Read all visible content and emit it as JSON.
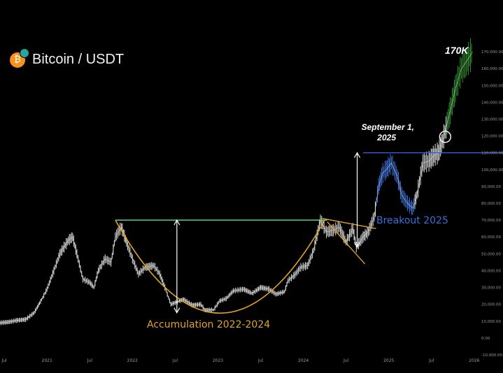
{
  "header": {
    "title": "Bitcoin / USDT",
    "icon": "bitcoin-icon"
  },
  "annotations": {
    "peak_label": "170K",
    "date_label_line1": "September 1,",
    "date_label_line2": "2025",
    "breakout_label": "Breakout 2025",
    "accumulation_label": "Accumulation 2022-2024"
  },
  "colors": {
    "background": "#000000",
    "candle": "#d9d9d9",
    "candle_blue": "#3b6fd1",
    "candle_green": "#2e8b2e",
    "cup": "#e0a528",
    "neckline": "#5fd08a",
    "breakout_line": "#3a5bd9",
    "flag": "#e0a528",
    "arrow": "#ffffff",
    "breakout_text": "#3a6fd8",
    "accum_text": "#e0a528"
  },
  "chart_data": {
    "type": "line",
    "title": "Bitcoin / USDT",
    "x_ticks": [
      "Jul",
      "2021",
      "Jul",
      "2022",
      "Jul",
      "2023",
      "Jul",
      "2024",
      "Jul",
      "2025",
      "Jul",
      "2026"
    ],
    "y_ticks": [
      "170,000.00",
      "160,000.00",
      "150,000.00",
      "140,000.00",
      "130,000.00",
      "120,000.00",
      "110,000.00",
      "100,000.00",
      "90,000.00",
      "80,000.00",
      "70,000.00",
      "60,000.00",
      "50,000.00",
      "40,000.00",
      "30,000.00",
      "20,000.00",
      "10,000.00",
      "0.00",
      "-10,000.00"
    ],
    "ylim": [
      -10000,
      175000
    ],
    "x_range": [
      2020.45,
      2026.05
    ],
    "series": [
      {
        "values": [
          [
            2020.45,
            9000
          ],
          [
            2020.55,
            9500
          ],
          [
            2020.65,
            10500
          ],
          [
            2020.75,
            11000
          ],
          [
            2020.85,
            15000
          ],
          [
            2020.95,
            24000
          ],
          [
            2021.0,
            29000
          ],
          [
            2021.08,
            40000
          ],
          [
            2021.15,
            50000
          ],
          [
            2021.25,
            58000
          ],
          [
            2021.3,
            60000
          ],
          [
            2021.35,
            50000
          ],
          [
            2021.42,
            35000
          ],
          [
            2021.5,
            33000
          ],
          [
            2021.55,
            30000
          ],
          [
            2021.6,
            40000
          ],
          [
            2021.68,
            47000
          ],
          [
            2021.75,
            45000
          ],
          [
            2021.8,
            60000
          ],
          [
            2021.87,
            66000
          ],
          [
            2021.93,
            57000
          ],
          [
            2022.0,
            47000
          ],
          [
            2022.07,
            38000
          ],
          [
            2022.15,
            42000
          ],
          [
            2022.25,
            43000
          ],
          [
            2022.32,
            38000
          ],
          [
            2022.38,
            30000
          ],
          [
            2022.45,
            20000
          ],
          [
            2022.55,
            22000
          ],
          [
            2022.6,
            23000
          ],
          [
            2022.7,
            19500
          ],
          [
            2022.8,
            20000
          ],
          [
            2022.85,
            16500
          ],
          [
            2022.95,
            16700
          ],
          [
            2023.02,
            22000
          ],
          [
            2023.1,
            23500
          ],
          [
            2023.18,
            28000
          ],
          [
            2023.3,
            29000
          ],
          [
            2023.4,
            26500
          ],
          [
            2023.5,
            30000
          ],
          [
            2023.6,
            29000
          ],
          [
            2023.68,
            26000
          ],
          [
            2023.78,
            27500
          ],
          [
            2023.82,
            34000
          ],
          [
            2023.9,
            37500
          ],
          [
            2023.97,
            42000
          ],
          [
            2024.05,
            43000
          ],
          [
            2024.12,
            52000
          ],
          [
            2024.2,
            70000
          ],
          [
            2024.27,
            63000
          ],
          [
            2024.35,
            64000
          ],
          [
            2024.42,
            66000
          ],
          [
            2024.5,
            57000
          ],
          [
            2024.58,
            65000
          ],
          [
            2024.62,
            54000
          ],
          [
            2024.7,
            60000
          ],
          [
            2024.76,
            63000
          ],
          [
            2024.83,
            72000
          ],
          [
            2024.88,
            90000
          ],
          [
            2024.93,
            98000
          ],
          [
            2024.97,
            100000
          ],
          [
            2025.03,
            104000
          ],
          [
            2025.1,
            96000
          ],
          [
            2025.15,
            85000
          ],
          [
            2025.22,
            80000
          ],
          [
            2025.28,
            77000
          ],
          [
            2025.33,
            85000
          ],
          [
            2025.4,
            104000
          ],
          [
            2025.47,
            105000
          ],
          [
            2025.52,
            108000
          ],
          [
            2025.58,
            110000
          ],
          [
            2025.63,
            117000
          ],
          [
            2025.67,
            125000
          ],
          [
            2025.72,
            135000
          ],
          [
            2025.78,
            148000
          ],
          [
            2025.85,
            160000
          ],
          [
            2025.92,
            165000
          ],
          [
            2025.98,
            170000
          ]
        ]
      }
    ],
    "levels": {
      "neckline": 70000,
      "breakout": 110000,
      "cup_bottom": 15000
    }
  }
}
